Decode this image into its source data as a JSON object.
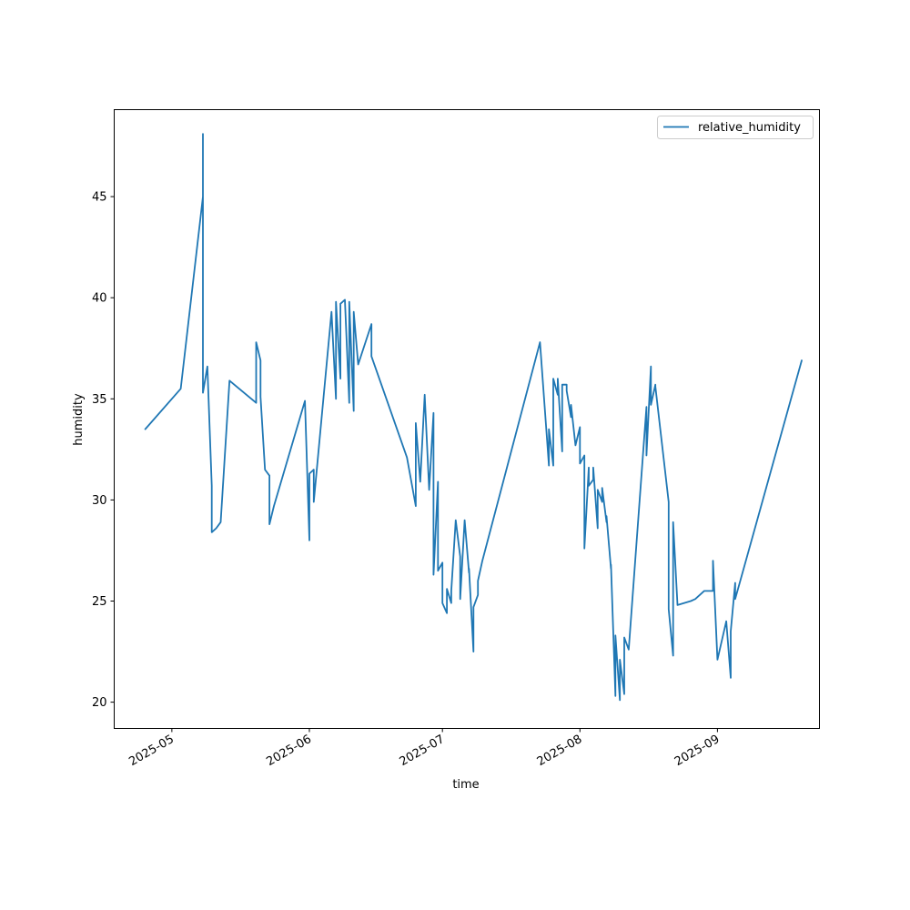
{
  "colors": {
    "series": "#1f77b4",
    "axes": "#000000",
    "legend_border": "#cccccc"
  },
  "chart_data": {
    "type": "line",
    "title": "",
    "xlabel": "time",
    "ylabel": "humidity",
    "grid": false,
    "legend_placement": "top-right",
    "xlim": [
      "2025-04-18",
      "2025-09-24"
    ],
    "ylim": [
      18.7,
      49.3
    ],
    "x_ticks": [
      "2025-05-01",
      "2025-06-01",
      "2025-07-01",
      "2025-08-01",
      "2025-09-01"
    ],
    "x_tick_labels": [
      "2025-05",
      "2025-06",
      "2025-07",
      "2025-08",
      "2025-09"
    ],
    "y_ticks": [
      20,
      25,
      30,
      35,
      40,
      45
    ],
    "y_tick_labels": [
      "20",
      "25",
      "30",
      "35",
      "40",
      "45"
    ],
    "series": [
      {
        "name": "relative_humidity",
        "x": [
          "2025-04-25",
          "2025-05-03",
          "2025-05-08",
          "2025-05-08",
          "2025-05-08",
          "2025-05-08",
          "2025-05-09",
          "2025-05-10",
          "2025-05-10",
          "2025-05-11",
          "2025-05-12",
          "2025-05-14",
          "2025-05-20",
          "2025-05-20",
          "2025-05-21",
          "2025-05-21",
          "2025-05-22",
          "2025-05-23",
          "2025-05-23",
          "2025-05-24",
          "2025-05-31",
          "2025-06-01",
          "2025-06-01",
          "2025-06-02",
          "2025-06-02",
          "2025-06-06",
          "2025-06-07",
          "2025-06-07",
          "2025-06-08",
          "2025-06-08",
          "2025-06-09",
          "2025-06-10",
          "2025-06-10",
          "2025-06-11",
          "2025-06-11",
          "2025-06-12",
          "2025-06-15",
          "2025-06-15",
          "2025-06-23",
          "2025-06-25",
          "2025-06-25",
          "2025-06-26",
          "2025-06-27",
          "2025-06-28",
          "2025-06-29",
          "2025-06-29",
          "2025-06-30",
          "2025-06-30",
          "2025-07-01",
          "2025-07-01",
          "2025-07-02",
          "2025-07-02",
          "2025-07-03",
          "2025-07-03",
          "2025-07-04",
          "2025-07-04",
          "2025-07-05",
          "2025-07-05",
          "2025-07-06",
          "2025-07-07",
          "2025-07-07",
          "2025-07-08",
          "2025-07-08",
          "2025-07-09",
          "2025-07-09",
          "2025-07-10",
          "2025-07-23",
          "2025-07-25",
          "2025-07-25",
          "2025-07-26",
          "2025-07-26",
          "2025-07-27",
          "2025-07-27",
          "2025-07-28",
          "2025-07-28",
          "2025-07-29",
          "2025-07-29",
          "2025-07-30",
          "2025-07-30",
          "2025-07-31",
          "2025-07-31",
          "2025-08-01",
          "2025-08-01",
          "2025-08-02",
          "2025-08-02",
          "2025-08-03",
          "2025-08-03",
          "2025-08-04",
          "2025-08-04",
          "2025-08-05",
          "2025-08-05",
          "2025-08-06",
          "2025-08-06",
          "2025-08-07",
          "2025-08-07",
          "2025-08-08",
          "2025-08-08",
          "2025-08-09",
          "2025-08-09",
          "2025-08-10",
          "2025-08-10",
          "2025-08-11",
          "2025-08-11",
          "2025-08-12",
          "2025-08-16",
          "2025-08-16",
          "2025-08-17",
          "2025-08-17",
          "2025-08-18",
          "2025-08-18",
          "2025-08-21",
          "2025-08-21",
          "2025-08-22",
          "2025-08-22",
          "2025-08-23",
          "2025-08-26",
          "2025-08-27",
          "2025-08-29",
          "2025-08-31",
          "2025-08-31",
          "2025-09-01",
          "2025-09-03",
          "2025-09-04",
          "2025-09-04",
          "2025-09-05",
          "2025-09-05",
          "2025-09-05",
          "2025-09-20"
        ],
        "values": [
          33.5,
          35.5,
          45.0,
          48.1,
          40.2,
          35.3,
          36.6,
          30.7,
          28.4,
          28.6,
          28.9,
          35.9,
          34.8,
          37.8,
          36.9,
          35.1,
          31.5,
          31.2,
          28.8,
          29.7,
          34.9,
          28.0,
          31.3,
          31.5,
          29.9,
          39.3,
          35.0,
          39.8,
          36.0,
          39.7,
          39.9,
          34.8,
          39.8,
          34.4,
          39.3,
          36.7,
          38.7,
          37.1,
          32.1,
          29.7,
          33.8,
          30.9,
          35.2,
          30.5,
          34.3,
          26.3,
          30.9,
          26.5,
          26.9,
          24.9,
          24.4,
          25.6,
          24.9,
          25.5,
          29.0,
          29.0,
          27.2,
          25.1,
          29.0,
          26.4,
          26.6,
          22.5,
          24.7,
          25.3,
          26.0,
          27.0,
          37.8,
          31.7,
          33.5,
          31.7,
          36.0,
          35.2,
          36.0,
          32.4,
          35.7,
          35.7,
          35.4,
          34.1,
          34.7,
          32.7,
          32.7,
          33.6,
          31.8,
          32.2,
          27.6,
          31.6,
          30.7,
          31.0,
          31.6,
          28.6,
          30.5,
          29.9,
          30.6,
          28.9,
          29.2,
          26.6,
          26.8,
          20.3,
          23.3,
          20.1,
          22.1,
          20.4,
          23.2,
          22.6,
          34.6,
          32.2,
          36.6,
          34.7,
          35.7,
          35.6,
          29.9,
          24.6,
          22.3,
          28.9,
          24.8,
          25.0,
          25.1,
          25.5,
          25.5,
          27.0,
          22.1,
          24.0,
          21.2,
          23.5,
          25.9,
          25.2,
          25.1,
          36.9
        ]
      }
    ]
  }
}
